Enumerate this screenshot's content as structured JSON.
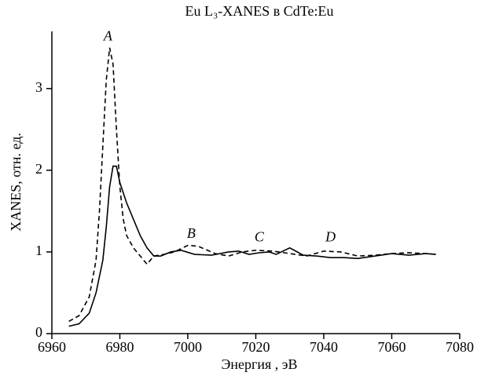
{
  "chart_data": {
    "type": "line",
    "title": "Eu L₃-XANES в CdTe:Eu",
    "x_label": "Энергия , эВ",
    "y_label": "XANES, отн. ед.",
    "xlim": [
      6960,
      7080
    ],
    "xticks": [
      6960,
      6980,
      7000,
      7020,
      7040,
      7060,
      7080
    ],
    "ylim": [
      0,
      3.7
    ],
    "yticks": [
      0,
      1,
      2,
      3
    ],
    "series": [
      {
        "color": "#000000",
        "dash": true,
        "x": [
          6965,
          6968,
          6971,
          6973,
          6974,
          6975,
          6976,
          6977,
          6978,
          6979,
          6980,
          6981,
          6982,
          6984,
          6986,
          6988,
          6990,
          6993,
          6996,
          7000,
          7003,
          7008,
          7012,
          7016,
          7020,
          7025,
          7030,
          7035,
          7040,
          7045,
          7050,
          7055,
          7060,
          7065,
          7070,
          7073
        ],
        "values": [
          0.15,
          0.22,
          0.45,
          0.9,
          1.5,
          2.3,
          3.1,
          3.5,
          3.3,
          2.5,
          1.8,
          1.4,
          1.2,
          1.05,
          0.95,
          0.85,
          0.95,
          0.97,
          1.0,
          1.08,
          1.07,
          0.98,
          0.95,
          1.0,
          1.02,
          1.01,
          0.98,
          0.95,
          1.01,
          1.0,
          0.95,
          0.96,
          0.98,
          0.99,
          0.98,
          0.97
        ]
      },
      {
        "color": "#000000",
        "dash": false,
        "x": [
          6965,
          6968,
          6971,
          6973,
          6975,
          6976,
          6977,
          6978,
          6979,
          6980,
          6982,
          6984,
          6986,
          6988,
          6990,
          6992,
          6995,
          6998,
          7002,
          7007,
          7012,
          7015,
          7018,
          7021,
          7024,
          7026,
          7030,
          7034,
          7038,
          7042,
          7046,
          7050,
          7055,
          7060,
          7065,
          7070,
          7073
        ],
        "values": [
          0.09,
          0.12,
          0.25,
          0.5,
          0.9,
          1.3,
          1.8,
          2.05,
          2.05,
          1.85,
          1.6,
          1.4,
          1.2,
          1.05,
          0.95,
          0.95,
          1.0,
          1.02,
          0.97,
          0.96,
          1.0,
          1.01,
          0.97,
          0.99,
          1.0,
          0.97,
          1.05,
          0.96,
          0.95,
          0.93,
          0.93,
          0.92,
          0.95,
          0.98,
          0.96,
          0.98,
          0.97
        ]
      }
    ],
    "annotations": [
      {
        "text": "A",
        "x": 6976.5,
        "y": 3.63
      },
      {
        "text": "B",
        "x": 7001,
        "y": 1.21
      },
      {
        "text": "C",
        "x": 7021,
        "y": 1.17
      },
      {
        "text": "D",
        "x": 7042,
        "y": 1.17
      }
    ]
  }
}
